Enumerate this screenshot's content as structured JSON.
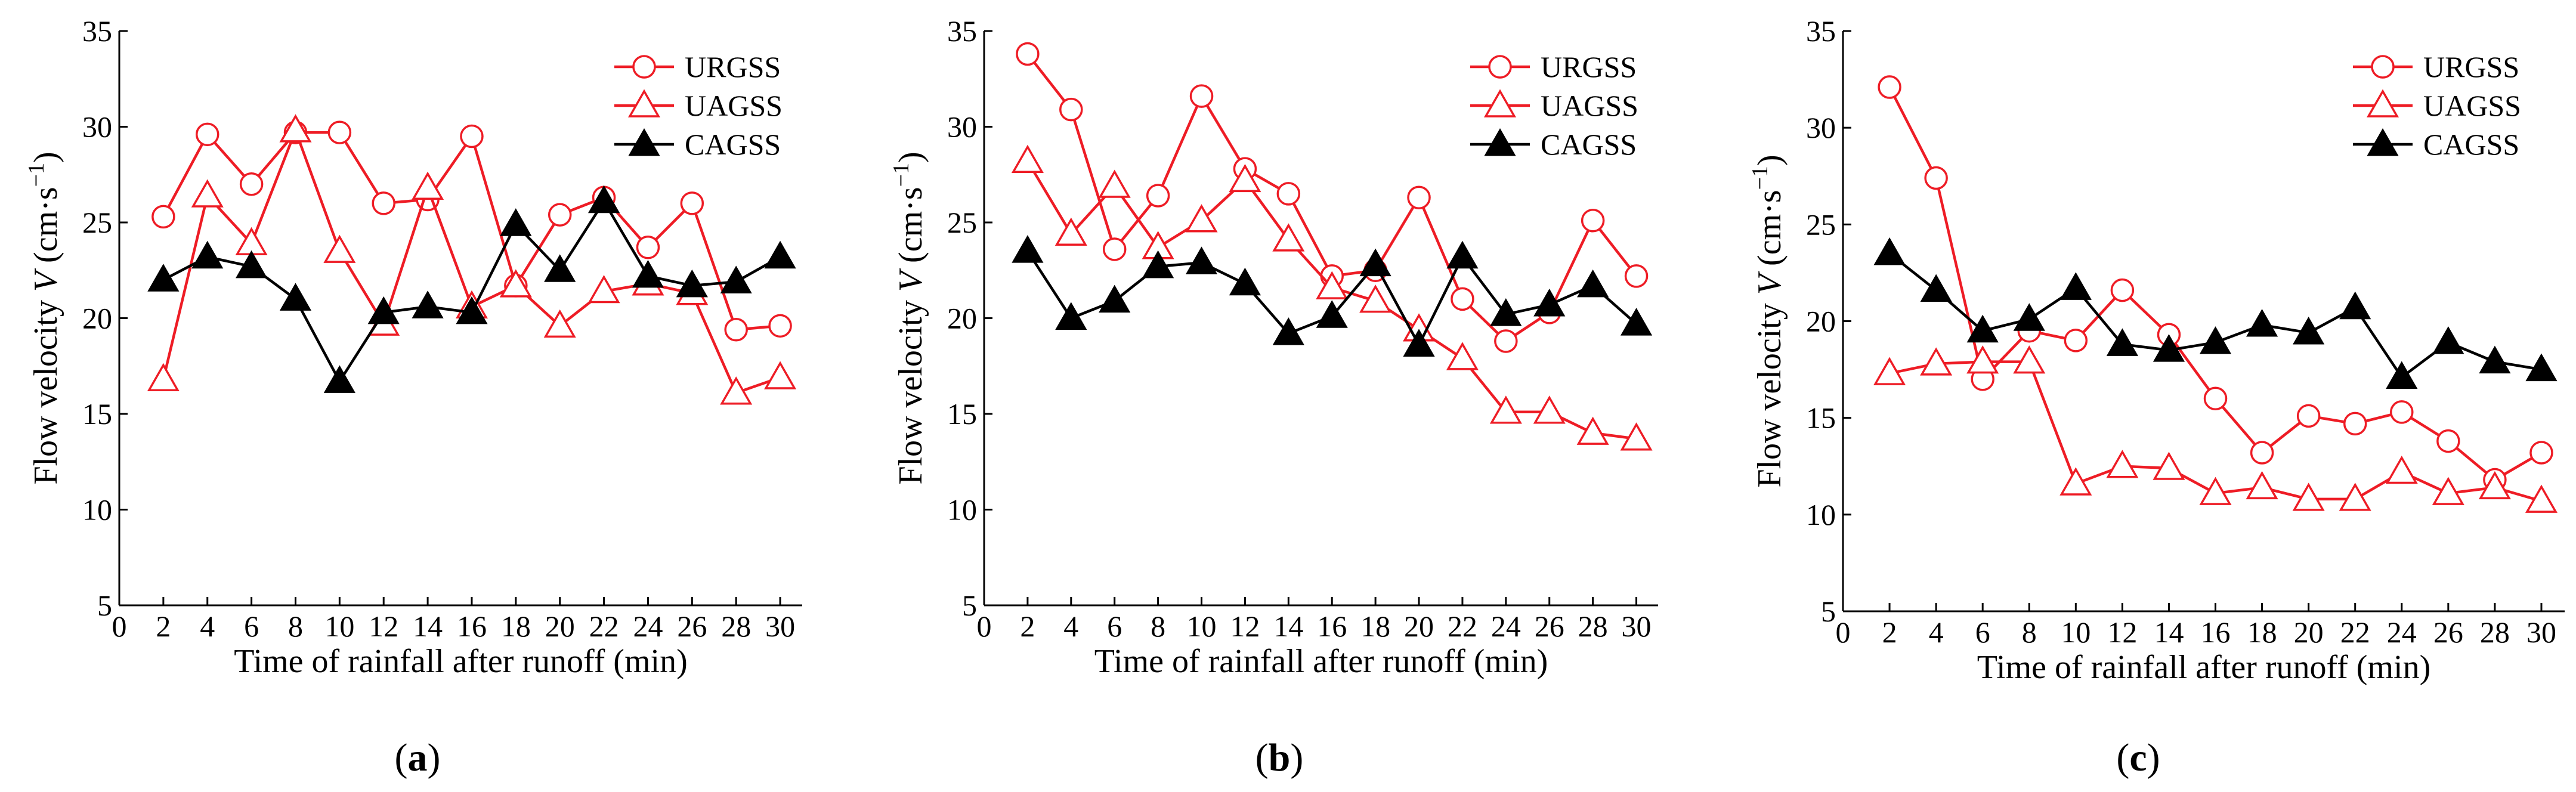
{
  "colors": {
    "red": "#ee1c25",
    "black": "#000000"
  },
  "chart_data": [
    {
      "type": "line",
      "panel_label": "a",
      "xlabel": "Time of rainfall after runoff (min)",
      "ylabel_prefix": "Flow velocity ",
      "ylabel_var": "V",
      "ylabel_unit_open": " (cm·s",
      "ylabel_unit_exp": "−1",
      "ylabel_unit_close": ")",
      "xlim": [
        0,
        31
      ],
      "ylim": [
        5,
        35
      ],
      "xticks": [
        0,
        2,
        4,
        6,
        8,
        10,
        12,
        14,
        16,
        18,
        20,
        22,
        24,
        26,
        28,
        30
      ],
      "yticks": [
        5,
        10,
        15,
        20,
        25,
        30,
        35
      ],
      "legend_position": "top-right",
      "x": [
        2,
        4,
        6,
        8,
        10,
        12,
        14,
        16,
        18,
        20,
        22,
        24,
        26,
        28,
        30
      ],
      "series": [
        {
          "name": "URGSS",
          "marker": "circle-open",
          "color": "#ee1c25",
          "values": [
            25.3,
            29.6,
            27.0,
            29.7,
            29.7,
            26.0,
            26.2,
            29.5,
            21.7,
            25.4,
            26.3,
            23.7,
            26.0,
            19.4,
            19.6
          ]
        },
        {
          "name": "UAGSS",
          "marker": "triangle-open",
          "color": "#ee1c25",
          "values": [
            16.8,
            26.4,
            23.9,
            29.8,
            23.5,
            19.7,
            26.8,
            20.6,
            21.7,
            19.6,
            21.4,
            21.8,
            21.3,
            16.1,
            16.9
          ]
        },
        {
          "name": "CAGSS",
          "marker": "triangle-filled",
          "color": "#000000",
          "values": [
            22.0,
            23.2,
            22.7,
            21.0,
            16.7,
            20.3,
            20.6,
            20.3,
            24.9,
            22.5,
            26.1,
            22.2,
            21.7,
            21.9,
            23.2
          ]
        }
      ]
    },
    {
      "type": "line",
      "panel_label": "b",
      "xlabel": "Time of rainfall after runoff (min)",
      "ylabel_prefix": "Flow velocity ",
      "ylabel_var": "V",
      "ylabel_unit_open": " (cm·s",
      "ylabel_unit_exp": "−1",
      "ylabel_unit_close": ")",
      "xlim": [
        0,
        31
      ],
      "ylim": [
        5,
        35
      ],
      "xticks": [
        0,
        2,
        4,
        6,
        8,
        10,
        12,
        14,
        16,
        18,
        20,
        22,
        24,
        26,
        28,
        30
      ],
      "yticks": [
        5,
        10,
        15,
        20,
        25,
        30,
        35
      ],
      "legend_position": "top-right",
      "x": [
        2,
        4,
        6,
        8,
        10,
        12,
        14,
        16,
        18,
        20,
        22,
        24,
        26,
        28,
        30
      ],
      "series": [
        {
          "name": "URGSS",
          "marker": "circle-open",
          "color": "#ee1c25",
          "values": [
            33.8,
            30.9,
            23.6,
            26.4,
            31.6,
            27.8,
            26.5,
            22.2,
            22.5,
            26.3,
            21.0,
            18.8,
            20.3,
            25.1,
            22.2
          ]
        },
        {
          "name": "UAGSS",
          "marker": "triangle-open",
          "color": "#ee1c25",
          "values": [
            28.2,
            24.4,
            26.9,
            23.7,
            25.1,
            27.2,
            24.1,
            21.6,
            20.9,
            19.4,
            17.9,
            15.1,
            15.1,
            14.0,
            13.7
          ]
        },
        {
          "name": "CAGSS",
          "marker": "triangle-filled",
          "color": "#000000",
          "values": [
            23.5,
            20.0,
            20.9,
            22.7,
            22.9,
            21.8,
            19.2,
            20.1,
            22.8,
            18.6,
            23.2,
            20.2,
            20.7,
            21.7,
            19.7
          ]
        }
      ]
    },
    {
      "type": "line",
      "panel_label": "c",
      "xlabel": "Time of rainfall after runoff (min)",
      "ylabel_prefix": "Flow velocity ",
      "ylabel_var": "V",
      "ylabel_unit_open": " (cm·s",
      "ylabel_unit_exp": "−1",
      "ylabel_unit_close": ")",
      "xlim": [
        0,
        31
      ],
      "ylim": [
        5,
        35
      ],
      "xticks": [
        0,
        2,
        4,
        6,
        8,
        10,
        12,
        14,
        16,
        18,
        20,
        22,
        24,
        26,
        28,
        30
      ],
      "yticks": [
        5,
        10,
        15,
        20,
        25,
        30,
        35
      ],
      "legend_position": "top-right",
      "x": [
        2,
        4,
        6,
        8,
        10,
        12,
        14,
        16,
        18,
        20,
        22,
        24,
        26,
        28,
        30
      ],
      "series": [
        {
          "name": "URGSS",
          "marker": "circle-open",
          "color": "#ee1c25",
          "values": [
            32.1,
            27.4,
            17.0,
            19.5,
            19.0,
            21.6,
            19.3,
            16.0,
            13.2,
            15.1,
            14.7,
            15.3,
            13.8,
            11.8,
            13.2
          ]
        },
        {
          "name": "UAGSS",
          "marker": "triangle-open",
          "color": "#ee1c25",
          "values": [
            17.3,
            17.8,
            17.9,
            17.9,
            11.6,
            12.5,
            12.4,
            11.1,
            11.4,
            10.8,
            10.8,
            12.2,
            11.1,
            11.4,
            10.7
          ]
        },
        {
          "name": "CAGSS",
          "marker": "triangle-filled",
          "color": "#000000",
          "values": [
            23.5,
            21.6,
            19.5,
            20.1,
            21.7,
            18.8,
            18.5,
            18.9,
            19.8,
            19.4,
            20.7,
            17.1,
            18.9,
            17.9,
            17.5
          ]
        }
      ]
    }
  ]
}
